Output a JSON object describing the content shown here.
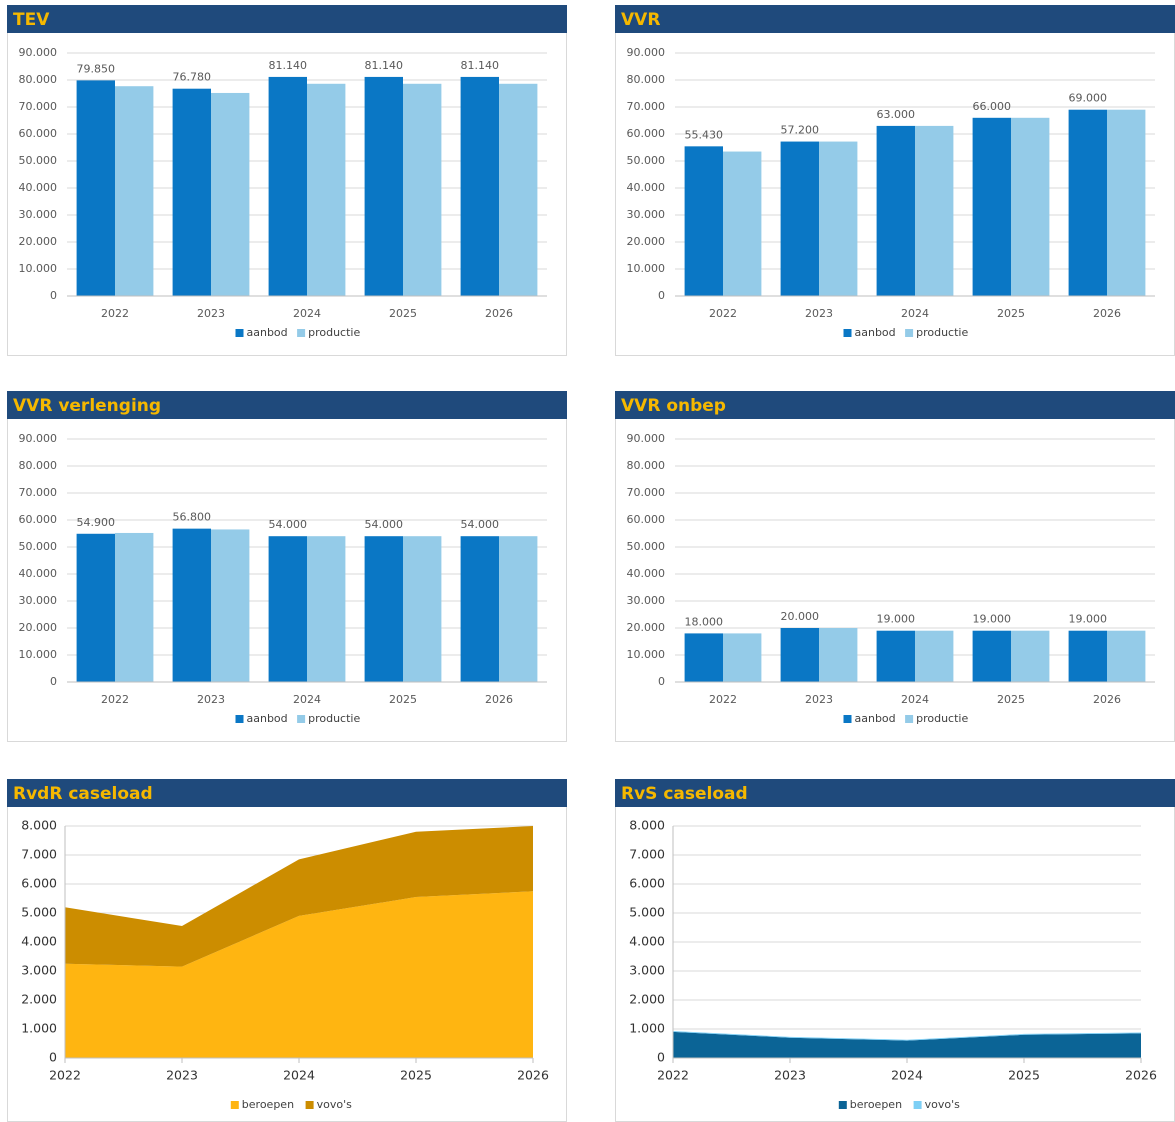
{
  "chart_data": [
    {
      "type": "bar",
      "title": "TEV",
      "categories": [
        "2022",
        "2023",
        "2024",
        "2025",
        "2026"
      ],
      "series": [
        {
          "name": "aanbod",
          "color": "#0a77c5",
          "values": [
            79850,
            76780,
            81140,
            81140,
            81140
          ],
          "value_labels": [
            "79.850",
            "76.780",
            "81.140",
            "81.140",
            "81.140"
          ]
        },
        {
          "name": "productie",
          "color": "#94cbe8",
          "values": [
            77700,
            75200,
            78600,
            78600,
            78600
          ]
        }
      ],
      "ylim": [
        0,
        90000
      ],
      "yticks": [
        0,
        {
          "value": 10000,
          "label": "10.000"
        },
        {
          "value": 20000,
          "label": "20.000"
        },
        {
          "value": 30000,
          "label": "30.000"
        },
        {
          "value": 40000,
          "label": "40.000"
        },
        {
          "value": 50000,
          "label": "50.000"
        },
        {
          "value": 60000,
          "label": "60.000"
        },
        {
          "value": 70000,
          "label": "70.000"
        },
        {
          "value": 80000,
          "label": "80.000"
        },
        {
          "value": 90000,
          "label": "90.000"
        }
      ],
      "grid": true,
      "legend": "bottom"
    },
    {
      "type": "bar",
      "title": "VVR",
      "categories": [
        "2022",
        "2023",
        "2024",
        "2025",
        "2026"
      ],
      "series": [
        {
          "name": "aanbod",
          "color": "#0a77c5",
          "values": [
            55430,
            57200,
            63000,
            66000,
            69000
          ],
          "value_labels": [
            "55.430",
            "57.200",
            "63.000",
            "66.000",
            "69.000"
          ]
        },
        {
          "name": "productie",
          "color": "#94cbe8",
          "values": [
            53500,
            57200,
            63000,
            66000,
            69000
          ]
        }
      ],
      "ylim": [
        0,
        90000
      ],
      "yticks": [
        0,
        {
          "value": 10000,
          "label": "10.000"
        },
        {
          "value": 20000,
          "label": "20.000"
        },
        {
          "value": 30000,
          "label": "30.000"
        },
        {
          "value": 40000,
          "label": "40.000"
        },
        {
          "value": 50000,
          "label": "50.000"
        },
        {
          "value": 60000,
          "label": "60.000"
        },
        {
          "value": 70000,
          "label": "70.000"
        },
        {
          "value": 80000,
          "label": "80.000"
        },
        {
          "value": 90000,
          "label": "90.000"
        }
      ],
      "grid": true,
      "legend": "bottom"
    },
    {
      "type": "bar",
      "title": "VVR verlenging",
      "categories": [
        "2022",
        "2023",
        "2024",
        "2025",
        "2026"
      ],
      "series": [
        {
          "name": "aanbod",
          "color": "#0a77c5",
          "values": [
            54900,
            56800,
            54000,
            54000,
            54000
          ],
          "value_labels": [
            "54.900",
            "56.800",
            "54.000",
            "54.000",
            "54.000"
          ]
        },
        {
          "name": "productie",
          "color": "#94cbe8",
          "values": [
            55200,
            56500,
            54000,
            54000,
            54000
          ]
        }
      ],
      "ylim": [
        0,
        90000
      ],
      "yticks": [
        0,
        {
          "value": 10000,
          "label": "10.000"
        },
        {
          "value": 20000,
          "label": "20.000"
        },
        {
          "value": 30000,
          "label": "30.000"
        },
        {
          "value": 40000,
          "label": "40.000"
        },
        {
          "value": 50000,
          "label": "50.000"
        },
        {
          "value": 60000,
          "label": "60.000"
        },
        {
          "value": 70000,
          "label": "70.000"
        },
        {
          "value": 80000,
          "label": "80.000"
        },
        {
          "value": 90000,
          "label": "90.000"
        }
      ],
      "grid": true,
      "legend": "bottom"
    },
    {
      "type": "bar",
      "title": "VVR onbep",
      "categories": [
        "2022",
        "2023",
        "2024",
        "2025",
        "2026"
      ],
      "series": [
        {
          "name": "aanbod",
          "color": "#0a77c5",
          "values": [
            18000,
            20000,
            19000,
            19000,
            19000
          ],
          "value_labels": [
            "18.000",
            "20.000",
            "19.000",
            "19.000",
            "19.000"
          ]
        },
        {
          "name": "productie",
          "color": "#94cbe8",
          "values": [
            18000,
            20000,
            19000,
            19000,
            19000
          ]
        }
      ],
      "ylim": [
        0,
        90000
      ],
      "yticks": [
        0,
        {
          "value": 10000,
          "label": "10.000"
        },
        {
          "value": 20000,
          "label": "20.000"
        },
        {
          "value": 30000,
          "label": "30.000"
        },
        {
          "value": 40000,
          "label": "40.000"
        },
        {
          "value": 50000,
          "label": "50.000"
        },
        {
          "value": 60000,
          "label": "60.000"
        },
        {
          "value": 70000,
          "label": "70.000"
        },
        {
          "value": 80000,
          "label": "80.000"
        },
        {
          "value": 90000,
          "label": "90.000"
        }
      ],
      "grid": true,
      "legend": "bottom"
    },
    {
      "type": "area",
      "stacked": true,
      "title": "RvdR caseload",
      "categories": [
        "2022",
        "2023",
        "2024",
        "2025",
        "2026"
      ],
      "series": [
        {
          "name": "beroepen",
          "color": "#ffb511",
          "values": [
            3250,
            3150,
            4900,
            5550,
            5750
          ]
        },
        {
          "name": "vovo's",
          "color": "#cc8d00",
          "values": [
            1950,
            1400,
            1950,
            2250,
            2250
          ]
        }
      ],
      "ylim": [
        0,
        8000
      ],
      "yticks": [
        0,
        {
          "value": 1000,
          "label": "1.000"
        },
        {
          "value": 2000,
          "label": "2.000"
        },
        {
          "value": 3000,
          "label": "3.000"
        },
        {
          "value": 4000,
          "label": "4.000"
        },
        {
          "value": 5000,
          "label": "5.000"
        },
        {
          "value": 6000,
          "label": "6.000"
        },
        {
          "value": 7000,
          "label": "7.000"
        },
        {
          "value": 8000,
          "label": "8.000"
        }
      ],
      "grid": true,
      "legend": "bottom"
    },
    {
      "type": "area",
      "stacked": true,
      "title": "RvS caseload",
      "categories": [
        "2022",
        "2023",
        "2024",
        "2025",
        "2026"
      ],
      "series": [
        {
          "name": "beroepen",
          "color": "#0b6496",
          "values": [
            900,
            700,
            600,
            800,
            850
          ]
        },
        {
          "name": "vovo's",
          "color": "#7dcff5",
          "values": [
            30,
            30,
            30,
            30,
            30
          ]
        }
      ],
      "ylim": [
        0,
        8000
      ],
      "yticks": [
        0,
        {
          "value": 1000,
          "label": "1.000"
        },
        {
          "value": 2000,
          "label": "2.000"
        },
        {
          "value": 3000,
          "label": "3.000"
        },
        {
          "value": 4000,
          "label": "4.000"
        },
        {
          "value": 5000,
          "label": "5.000"
        },
        {
          "value": 6000,
          "label": "6.000"
        },
        {
          "value": 7000,
          "label": "7.000"
        },
        {
          "value": 8000,
          "label": "8.000"
        }
      ],
      "grid": true,
      "legend": "bottom"
    }
  ]
}
